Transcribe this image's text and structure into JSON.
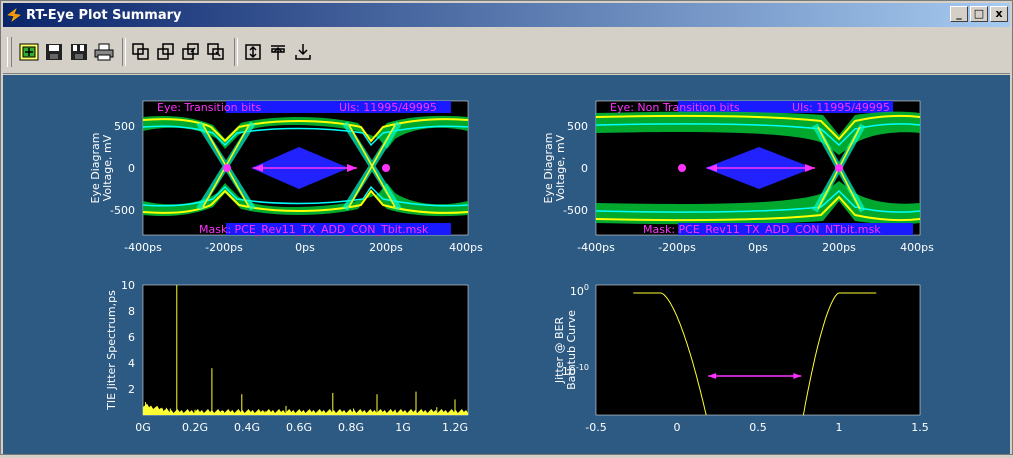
{
  "window": {
    "title": "RT-Eye Plot Summary",
    "buttons": {
      "minimize": "_",
      "maximize": "□",
      "close": "x"
    }
  },
  "toolbar": {
    "tools": [
      "zoom-icon",
      "save-icon",
      "save-all-icon",
      "print-icon",
      "tile-1-icon",
      "tile-2-icon",
      "tile-3-icon",
      "tile-4-icon",
      "fit-vertical-icon",
      "align-top-icon",
      "export-icon"
    ]
  },
  "colors": {
    "plot_bg": "#2d5a82",
    "axes_bg": "#000000",
    "trace": "#ffff33",
    "marker": "#ff33ff",
    "mask": "#3333ff"
  },
  "eye_top_left": {
    "label_left": "Eye: Transition bits",
    "label_right": "UIs: 11995/49995",
    "mask_label": "Mask: PCE_Rev11_TX_ADD_CON_Tbit.msk",
    "ylabel_line1": "Eye Diagram",
    "ylabel_line2": "Voltage, mV",
    "yticks": [
      "500",
      "0",
      "-500"
    ],
    "xticks": [
      "-400ps",
      "-200ps",
      "0ps",
      "200ps",
      "400ps"
    ]
  },
  "eye_top_right": {
    "label_left": "Eye: Non Transition bits",
    "label_right": "UIs: 11995/49995",
    "mask_label": "Mask: PCE_Rev11_TX_ADD_CON_NTbit.msk",
    "ylabel_line1": "Eye Diagram",
    "ylabel_line2": "Voltage, mV",
    "yticks": [
      "500",
      "0",
      "-500"
    ],
    "xticks": [
      "-400ps",
      "-200ps",
      "0ps",
      "200ps",
      "400ps"
    ]
  },
  "chart_data": [
    {
      "type": "bar",
      "ylabel": "TIE Jitter Spectrum,ps",
      "ylim": [
        0,
        10
      ],
      "yticks": [
        "10",
        "8",
        "6",
        "4",
        "2"
      ],
      "xticks": [
        "0G",
        "0.2G",
        "0.4G",
        "0.6G",
        "0.8G",
        "1G",
        "1.2G"
      ],
      "xlim": [
        0,
        1.25
      ],
      "spikes_x": [
        0.01,
        0.03,
        0.055,
        0.075,
        0.09,
        0.105,
        0.13,
        0.2,
        0.265,
        0.31,
        0.38,
        0.47,
        0.55,
        0.64,
        0.73,
        0.81,
        0.9,
        0.97,
        1.05,
        1.13,
        1.2
      ],
      "spikes_y": [
        1.0,
        0.7,
        0.6,
        0.5,
        0.55,
        0.5,
        10,
        0.4,
        3.6,
        0.3,
        1.6,
        0.3,
        0.7,
        0.4,
        1.7,
        0.5,
        1.6,
        0.4,
        1.8,
        0.6,
        1.2
      ]
    },
    {
      "type": "line",
      "ylabel_line1": "Jitter @ BER",
      "ylabel_line2": "Bathtub Curve",
      "xticks": [
        "-0.5",
        "0",
        "0.5",
        "1",
        "1.5"
      ],
      "xlim": [
        -0.5,
        1.5
      ],
      "ytick_top": "10^0",
      "ytick_mid": "10^-10",
      "eye_opening": [
        0.18,
        0.78
      ]
    }
  ]
}
